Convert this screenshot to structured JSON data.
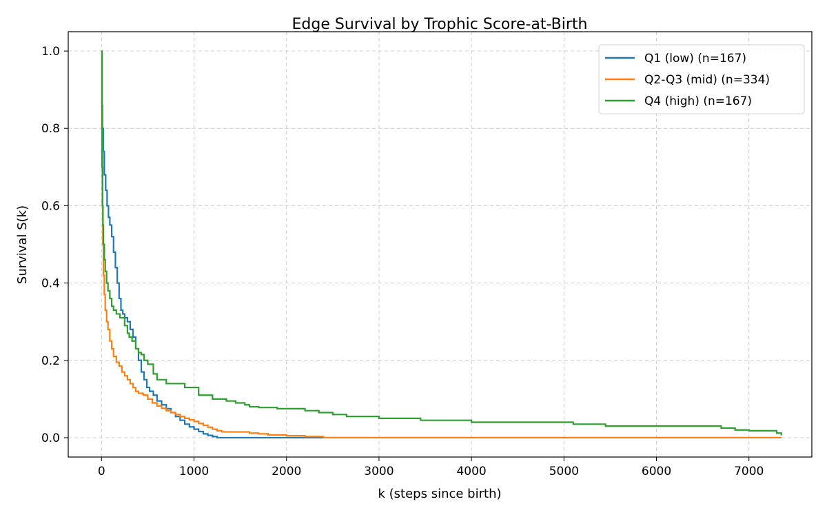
{
  "chart_data": {
    "type": "line",
    "title": "Edge Survival by Trophic Score-at-Birth",
    "xlabel": "k (steps since birth)",
    "ylabel": "Survival S(k)",
    "xlim": [
      -360,
      7680
    ],
    "ylim": [
      -0.05,
      1.05
    ],
    "xticks": [
      0,
      1000,
      2000,
      3000,
      4000,
      5000,
      6000,
      7000
    ],
    "xtick_labels": [
      "0",
      "1000",
      "2000",
      "3000",
      "4000",
      "5000",
      "6000",
      "7000"
    ],
    "yticks": [
      0.0,
      0.2,
      0.4,
      0.6,
      0.8,
      1.0
    ],
    "ytick_labels": [
      "0.0",
      "0.2",
      "0.4",
      "0.6",
      "0.8",
      "1.0"
    ],
    "grid": true,
    "legend_position": "top-right",
    "step": true,
    "series": [
      {
        "name": "Q1 (low) (n=167)",
        "color": "#1f77b4",
        "x": [
          0,
          5,
          10,
          20,
          30,
          45,
          60,
          75,
          90,
          110,
          130,
          150,
          170,
          190,
          210,
          230,
          250,
          280,
          310,
          340,
          370,
          400,
          430,
          460,
          490,
          520,
          560,
          600,
          650,
          700,
          750,
          800,
          850,
          900,
          950,
          1000,
          1050,
          1100,
          1150,
          1200,
          1250,
          1300,
          2400,
          7350
        ],
        "y": [
          1.0,
          0.86,
          0.8,
          0.74,
          0.68,
          0.64,
          0.6,
          0.57,
          0.55,
          0.52,
          0.48,
          0.44,
          0.4,
          0.36,
          0.33,
          0.32,
          0.31,
          0.3,
          0.28,
          0.26,
          0.23,
          0.2,
          0.17,
          0.15,
          0.13,
          0.12,
          0.11,
          0.095,
          0.085,
          0.075,
          0.065,
          0.055,
          0.045,
          0.035,
          0.028,
          0.022,
          0.016,
          0.01,
          0.006,
          0.003,
          0.0,
          0.0,
          0.0,
          0.0
        ]
      },
      {
        "name": "Q2-Q3 (mid) (n=334)",
        "color": "#ff7f0e",
        "x": [
          0,
          5,
          10,
          15,
          20,
          30,
          40,
          55,
          70,
          90,
          110,
          130,
          160,
          190,
          220,
          250,
          280,
          310,
          340,
          370,
          400,
          450,
          500,
          550,
          600,
          650,
          700,
          750,
          800,
          850,
          900,
          950,
          1000,
          1050,
          1100,
          1150,
          1200,
          1250,
          1300,
          1400,
          1500,
          1600,
          1700,
          1800,
          2000,
          2200,
          2400,
          3000,
          7350
        ],
        "y": [
          1.0,
          0.8,
          0.6,
          0.5,
          0.42,
          0.37,
          0.33,
          0.3,
          0.28,
          0.25,
          0.23,
          0.21,
          0.195,
          0.185,
          0.17,
          0.16,
          0.15,
          0.14,
          0.13,
          0.12,
          0.115,
          0.11,
          0.1,
          0.09,
          0.082,
          0.076,
          0.07,
          0.065,
          0.06,
          0.055,
          0.05,
          0.046,
          0.042,
          0.037,
          0.032,
          0.027,
          0.022,
          0.018,
          0.015,
          0.015,
          0.015,
          0.012,
          0.01,
          0.007,
          0.005,
          0.003,
          0.0,
          0.0,
          0.0
        ]
      },
      {
        "name": "Q4 (high) (n=167)",
        "color": "#2ca02c",
        "x": [
          0,
          5,
          10,
          15,
          20,
          30,
          40,
          55,
          70,
          90,
          110,
          130,
          160,
          200,
          250,
          280,
          300,
          330,
          370,
          400,
          430,
          460,
          500,
          560,
          600,
          700,
          900,
          1050,
          1200,
          1350,
          1450,
          1550,
          1600,
          1700,
          1900,
          2200,
          2350,
          2500,
          2650,
          3000,
          3450,
          4000,
          5100,
          5450,
          6700,
          6850,
          7000,
          7300,
          7350
        ],
        "y": [
          1.0,
          0.7,
          0.6,
          0.55,
          0.5,
          0.46,
          0.43,
          0.4,
          0.38,
          0.36,
          0.34,
          0.33,
          0.32,
          0.31,
          0.29,
          0.27,
          0.26,
          0.25,
          0.23,
          0.22,
          0.215,
          0.2,
          0.19,
          0.165,
          0.15,
          0.14,
          0.13,
          0.11,
          0.1,
          0.095,
          0.09,
          0.085,
          0.08,
          0.078,
          0.075,
          0.07,
          0.065,
          0.06,
          0.055,
          0.05,
          0.045,
          0.04,
          0.035,
          0.03,
          0.025,
          0.02,
          0.018,
          0.012,
          0.006
        ]
      }
    ]
  }
}
